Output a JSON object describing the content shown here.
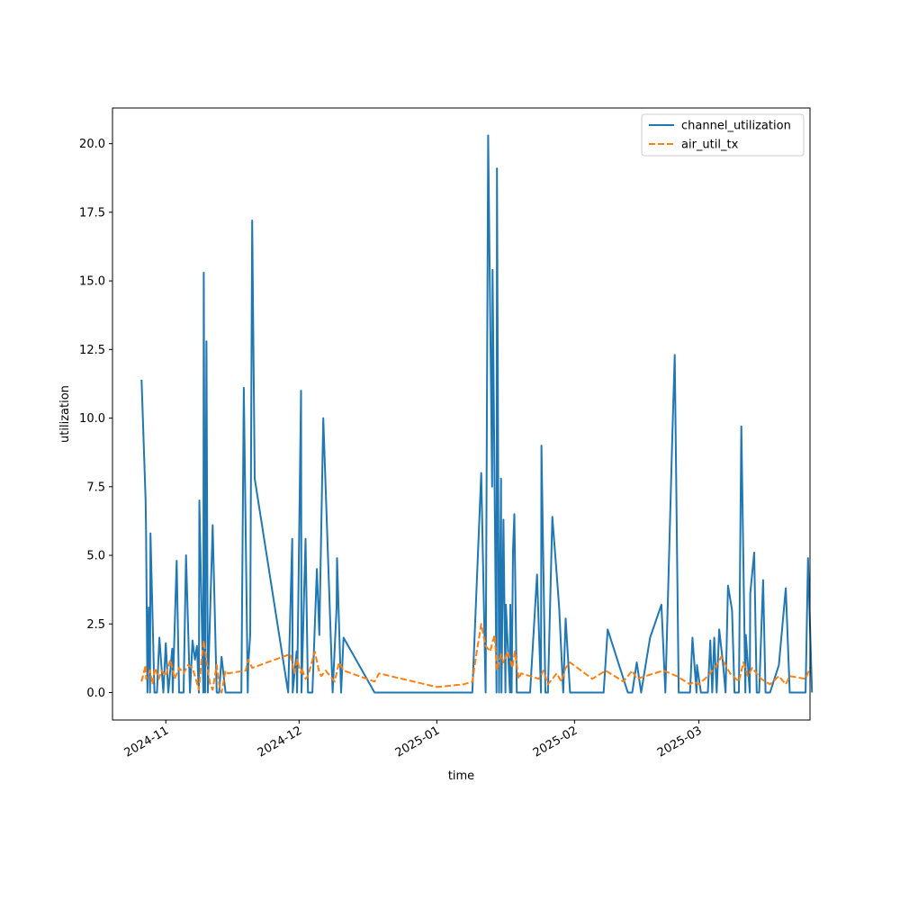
{
  "chart_data": {
    "type": "line",
    "xlabel": "time",
    "ylabel": "utilization",
    "xlim": [
      "2024-10-20",
      "2025-03-26"
    ],
    "ylim": [
      -1.0,
      21.3
    ],
    "grid": false,
    "legend_position": "top-right",
    "x_ticks": [
      {
        "date": "2024-11-01",
        "label": "2024-11"
      },
      {
        "date": "2024-12-01",
        "label": "2024-12"
      },
      {
        "date": "2025-01-01",
        "label": "2025-01"
      },
      {
        "date": "2025-02-01",
        "label": "2025-02"
      },
      {
        "date": "2025-03-01",
        "label": "2025-03"
      }
    ],
    "y_ticks": [
      {
        "value": 0.0,
        "label": "0.0"
      },
      {
        "value": 2.5,
        "label": "2.5"
      },
      {
        "value": 5.0,
        "label": "5.0"
      },
      {
        "value": 7.5,
        "label": "7.5"
      },
      {
        "value": 10.0,
        "label": "10.0"
      },
      {
        "value": 12.5,
        "label": "12.5"
      },
      {
        "value": 15.0,
        "label": "15.0"
      },
      {
        "value": 17.5,
        "label": "17.5"
      },
      {
        "value": 20.0,
        "label": "20.0"
      }
    ],
    "series": [
      {
        "name": "channel_utilization",
        "color": "#1f77b4",
        "style": "solid",
        "points": [
          [
            "2024-10-27",
            11.4
          ],
          [
            "2024-10-27",
            7.0
          ],
          [
            "2024-10-28",
            5.8
          ],
          [
            "2024-10-28",
            0.0
          ],
          [
            "2024-10-28",
            3.1
          ],
          [
            "2024-10-28",
            0.0
          ],
          [
            "2024-10-29",
            5.8
          ],
          [
            "2024-10-29",
            0.0
          ],
          [
            "2024-10-30",
            0.0
          ],
          [
            "2024-10-31",
            2.0
          ],
          [
            "2024-10-31",
            0.0
          ],
          [
            "2024-11-01",
            1.8
          ],
          [
            "2024-11-02",
            0.0
          ],
          [
            "2024-11-02",
            1.6
          ],
          [
            "2024-11-03",
            0.0
          ],
          [
            "2024-11-03",
            4.8
          ],
          [
            "2024-11-04",
            0.0
          ],
          [
            "2024-11-05",
            0.0
          ],
          [
            "2024-11-06",
            5.0
          ],
          [
            "2024-11-06",
            0.0
          ],
          [
            "2024-11-07",
            1.9
          ],
          [
            "2024-11-08",
            1.2
          ],
          [
            "2024-11-08",
            1.7
          ],
          [
            "2024-11-08",
            0.0
          ],
          [
            "2024-11-09",
            7.0
          ],
          [
            "2024-11-09",
            0.0
          ],
          [
            "2024-11-10",
            15.3
          ],
          [
            "2024-11-10",
            0.0
          ],
          [
            "2024-11-10",
            12.8
          ],
          [
            "2024-11-10",
            0.0
          ],
          [
            "2024-11-12",
            6.1
          ],
          [
            "2024-11-12",
            0.0
          ],
          [
            "2024-11-13",
            0.0
          ],
          [
            "2024-11-14",
            1.3
          ],
          [
            "2024-11-14",
            0.0
          ],
          [
            "2024-11-18",
            0.0
          ],
          [
            "2024-11-19",
            11.1
          ],
          [
            "2024-11-19",
            0.0
          ],
          [
            "2024-11-20",
            1.0
          ],
          [
            "2024-11-20",
            2.1
          ],
          [
            "2024-11-20",
            17.2
          ],
          [
            "2024-11-21",
            7.8
          ],
          [
            "2024-11-29",
            0.0
          ],
          [
            "2024-11-29",
            5.6
          ],
          [
            "2024-11-30",
            0.0
          ],
          [
            "2024-11-30",
            1.5
          ],
          [
            "2024-12-01",
            0.0
          ],
          [
            "2024-12-01",
            11.0
          ],
          [
            "2024-12-02",
            0.0
          ],
          [
            "2024-12-02",
            5.6
          ],
          [
            "2024-12-03",
            0.0
          ],
          [
            "2024-12-04",
            0.0
          ],
          [
            "2024-12-05",
            4.5
          ],
          [
            "2024-12-06",
            2.1
          ],
          [
            "2024-12-06",
            10.0
          ],
          [
            "2024-12-09",
            0.0
          ],
          [
            "2024-12-09",
            3.1
          ],
          [
            "2024-12-10",
            4.9
          ],
          [
            "2024-12-10",
            0.0
          ],
          [
            "2024-12-11",
            2.0
          ],
          [
            "2024-12-18",
            0.0
          ],
          [
            "2025-01-09",
            0.0
          ],
          [
            "2025-01-11",
            8.0
          ],
          [
            "2025-01-12",
            0.0
          ],
          [
            "2025-01-13",
            20.3
          ],
          [
            "2025-01-13",
            7.5
          ],
          [
            "2025-01-14",
            15.4
          ],
          [
            "2025-01-14",
            0.0
          ],
          [
            "2025-01-15",
            19.1
          ],
          [
            "2025-01-15",
            0.0
          ],
          [
            "2025-01-15",
            7.8
          ],
          [
            "2025-01-16",
            0.0
          ],
          [
            "2025-01-16",
            6.3
          ],
          [
            "2025-01-16",
            0.0
          ],
          [
            "2025-01-17",
            3.2
          ],
          [
            "2025-01-17",
            0.0
          ],
          [
            "2025-01-18",
            3.2
          ],
          [
            "2025-01-18",
            0.0
          ],
          [
            "2025-01-18",
            5.2
          ],
          [
            "2025-01-18",
            6.5
          ],
          [
            "2025-01-19",
            0.0
          ],
          [
            "2025-01-20",
            0.0
          ],
          [
            "2025-01-22",
            0.0
          ],
          [
            "2025-01-24",
            4.3
          ],
          [
            "2025-01-24",
            0.0
          ],
          [
            "2025-01-25",
            9.0
          ],
          [
            "2025-01-25",
            0.0
          ],
          [
            "2025-01-26",
            0.0
          ],
          [
            "2025-01-27",
            6.4
          ],
          [
            "2025-01-28",
            4.3
          ],
          [
            "2025-01-29",
            3.1
          ],
          [
            "2025-01-29",
            0.0
          ],
          [
            "2025-01-30",
            2.7
          ],
          [
            "2025-01-31",
            0.0
          ],
          [
            "2025-02-01",
            0.0
          ],
          [
            "2025-02-08",
            0.0
          ],
          [
            "2025-02-08",
            2.3
          ],
          [
            "2025-02-13",
            0.0
          ],
          [
            "2025-02-14",
            0.0
          ],
          [
            "2025-02-15",
            1.1
          ],
          [
            "2025-02-16",
            0.0
          ],
          [
            "2025-02-18",
            2.0
          ],
          [
            "2025-02-21",
            3.2
          ],
          [
            "2025-02-21",
            0.0
          ],
          [
            "2025-02-23",
            9.3
          ],
          [
            "2025-02-24",
            12.3
          ],
          [
            "2025-02-24",
            0.0
          ],
          [
            "2025-02-27",
            0.0
          ],
          [
            "2025-02-28",
            2.0
          ],
          [
            "2025-02-28",
            0.0
          ],
          [
            "2025-03-01",
            1.0
          ],
          [
            "2025-03-01",
            0.0
          ],
          [
            "2025-03-03",
            0.0
          ],
          [
            "2025-03-04",
            1.9
          ],
          [
            "2025-03-04",
            0.0
          ],
          [
            "2025-03-04",
            2.0
          ],
          [
            "2025-03-05",
            0.0
          ],
          [
            "2025-03-06",
            2.3
          ],
          [
            "2025-03-06",
            1.0
          ],
          [
            "2025-03-07",
            0.0
          ],
          [
            "2025-03-08",
            3.9
          ],
          [
            "2025-03-08",
            3.0
          ],
          [
            "2025-03-09",
            0.0
          ],
          [
            "2025-03-10",
            0.0
          ],
          [
            "2025-03-11",
            9.7
          ],
          [
            "2025-03-11",
            0.0
          ],
          [
            "2025-03-12",
            2.1
          ],
          [
            "2025-03-12",
            0.0
          ],
          [
            "2025-03-13",
            3.6
          ],
          [
            "2025-03-13",
            5.1
          ],
          [
            "2025-03-14",
            0.0
          ],
          [
            "2025-03-15",
            0.0
          ],
          [
            "2025-03-15",
            4.1
          ],
          [
            "2025-03-16",
            0.0
          ],
          [
            "2025-03-17",
            0.0
          ],
          [
            "2025-03-19",
            1.0
          ],
          [
            "2025-03-21",
            3.8
          ],
          [
            "2025-03-21",
            0.0
          ],
          [
            "2025-03-25",
            0.0
          ],
          [
            "2025-03-26",
            4.9
          ],
          [
            "2025-03-26",
            0.0
          ]
        ]
      },
      {
        "name": "air_util_tx",
        "color": "#ff7f0e",
        "style": "dashed",
        "points": [
          [
            "2024-10-27",
            0.4
          ],
          [
            "2024-10-27",
            1.0
          ],
          [
            "2024-10-28",
            0.5
          ],
          [
            "2024-10-28",
            0.8
          ],
          [
            "2024-10-29",
            0.3
          ],
          [
            "2024-10-30",
            0.9
          ],
          [
            "2024-10-30",
            0.5
          ],
          [
            "2024-10-31",
            0.8
          ],
          [
            "2024-11-01",
            0.6
          ],
          [
            "2024-11-02",
            1.2
          ],
          [
            "2024-11-03",
            0.5
          ],
          [
            "2024-11-04",
            0.9
          ],
          [
            "2024-11-05",
            0.7
          ],
          [
            "2024-11-06",
            1.0
          ],
          [
            "2024-11-07",
            0.9
          ],
          [
            "2024-11-08",
            0.6
          ],
          [
            "2024-11-08",
            0.1
          ],
          [
            "2024-11-09",
            1.1
          ],
          [
            "2024-11-10",
            1.9
          ],
          [
            "2024-11-10",
            0.8
          ],
          [
            "2024-11-11",
            0.3
          ],
          [
            "2024-11-12",
            0.1
          ],
          [
            "2024-11-12",
            1.0
          ],
          [
            "2024-11-13",
            0.3
          ],
          [
            "2024-11-14",
            0.0
          ],
          [
            "2024-11-14",
            0.8
          ],
          [
            "2024-11-15",
            0.7
          ],
          [
            "2024-11-19",
            0.8
          ],
          [
            "2024-11-20",
            1.2
          ],
          [
            "2024-11-20",
            0.9
          ],
          [
            "2024-11-29",
            1.4
          ],
          [
            "2024-11-30",
            0.7
          ],
          [
            "2024-12-01",
            1.2
          ],
          [
            "2024-12-01",
            0.7
          ],
          [
            "2024-12-02",
            0.9
          ],
          [
            "2024-12-02",
            0.5
          ],
          [
            "2024-12-03",
            0.6
          ],
          [
            "2024-12-05",
            1.5
          ],
          [
            "2024-12-05",
            0.8
          ],
          [
            "2024-12-06",
            0.6
          ],
          [
            "2024-12-07",
            0.8
          ],
          [
            "2024-12-09",
            0.4
          ],
          [
            "2024-12-10",
            1.1
          ],
          [
            "2024-12-11",
            0.8
          ],
          [
            "2024-12-18",
            0.4
          ],
          [
            "2024-12-19",
            0.7
          ],
          [
            "2025-01-01",
            0.2
          ],
          [
            "2025-01-07",
            0.3
          ],
          [
            "2025-01-09",
            0.4
          ],
          [
            "2025-01-10",
            1.5
          ],
          [
            "2025-01-11",
            2.5
          ],
          [
            "2025-01-12",
            1.7
          ],
          [
            "2025-01-13",
            1.5
          ],
          [
            "2025-01-14",
            2.1
          ],
          [
            "2025-01-15",
            0.8
          ],
          [
            "2025-01-15",
            1.4
          ],
          [
            "2025-01-16",
            1.1
          ],
          [
            "2025-01-17",
            1.5
          ],
          [
            "2025-01-18",
            0.9
          ],
          [
            "2025-01-19",
            1.5
          ],
          [
            "2025-01-19",
            0.5
          ],
          [
            "2025-01-20",
            0.7
          ],
          [
            "2025-01-24",
            0.5
          ],
          [
            "2025-01-25",
            0.8
          ],
          [
            "2025-01-26",
            0.3
          ],
          [
            "2025-01-28",
            0.7
          ],
          [
            "2025-01-29",
            0.4
          ],
          [
            "2025-01-30",
            0.9
          ],
          [
            "2025-01-31",
            1.1
          ],
          [
            "2025-02-05",
            0.5
          ],
          [
            "2025-02-08",
            0.8
          ],
          [
            "2025-02-12",
            0.4
          ],
          [
            "2025-02-14",
            0.8
          ],
          [
            "2025-02-15",
            0.5
          ],
          [
            "2025-02-17",
            0.6
          ],
          [
            "2025-02-21",
            0.8
          ],
          [
            "2025-02-24",
            0.6
          ],
          [
            "2025-02-27",
            0.3
          ],
          [
            "2025-02-28",
            0.4
          ],
          [
            "2025-03-01",
            0.3
          ],
          [
            "2025-03-03",
            0.6
          ],
          [
            "2025-03-05",
            1.0
          ],
          [
            "2025-03-06",
            1.3
          ],
          [
            "2025-03-08",
            0.7
          ],
          [
            "2025-03-10",
            0.4
          ],
          [
            "2025-03-11",
            1.1
          ],
          [
            "2025-03-12",
            0.6
          ],
          [
            "2025-03-13",
            0.9
          ],
          [
            "2025-03-15",
            0.5
          ],
          [
            "2025-03-17",
            0.3
          ],
          [
            "2025-03-19",
            0.6
          ],
          [
            "2025-03-21",
            0.3
          ],
          [
            "2025-03-21",
            0.6
          ],
          [
            "2025-03-25",
            0.5
          ],
          [
            "2025-03-26",
            0.9
          ]
        ]
      }
    ]
  }
}
